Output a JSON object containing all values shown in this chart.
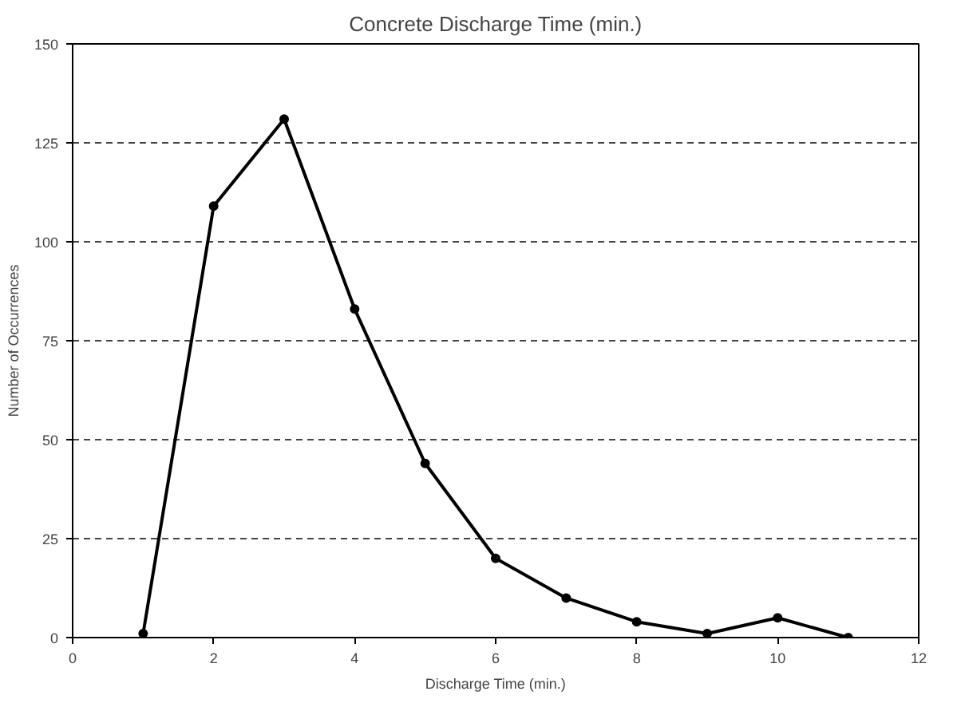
{
  "chart_data": {
    "type": "line",
    "title": "Concrete Discharge Time (min.)",
    "xlabel": "Discharge Time (min.)",
    "ylabel": "Number of Occurrences",
    "x": [
      1,
      2,
      3,
      4,
      5,
      6,
      7,
      8,
      9,
      10,
      11
    ],
    "series": [
      {
        "color": "#000000",
        "values": [
          1,
          109,
          131,
          83,
          44,
          20,
          10,
          4,
          1,
          5,
          0
        ]
      }
    ],
    "xlim": [
      0,
      12
    ],
    "xticks": [
      0,
      2,
      4,
      6,
      8,
      10,
      12
    ],
    "ylim": [
      0,
      150
    ],
    "yticks": [
      0,
      25,
      50,
      75,
      100,
      125,
      150
    ],
    "grid": "y",
    "marker": "circle",
    "line_style": "solid"
  }
}
